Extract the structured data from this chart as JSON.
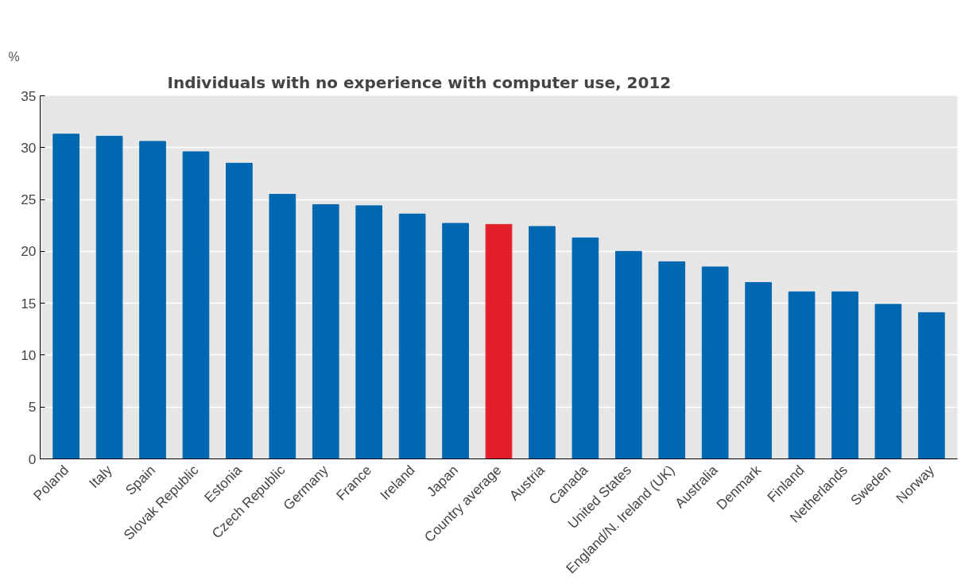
{
  "chart_data": {
    "type": "bar",
    "title": "Individuals with no experience with computer use, 2012",
    "ylabel": "%",
    "categories": [
      "Poland",
      "Italy",
      "Spain",
      "Slovak Republic",
      "Estonia",
      "Czech Republic",
      "Germany",
      "France",
      "Ireland",
      "Japan",
      "Country average",
      "Austria",
      "Canada",
      "United States",
      "England/N. Ireland (UK)",
      "Australia",
      "Denmark",
      "Finland",
      "Netherlands",
      "Sweden",
      "Norway"
    ],
    "values": [
      31.3,
      31.1,
      30.6,
      29.6,
      28.5,
      25.5,
      24.5,
      24.4,
      23.6,
      22.7,
      22.6,
      22.4,
      21.3,
      20.0,
      19.0,
      18.5,
      17.0,
      16.1,
      16.1,
      14.9,
      14.1
    ],
    "colors": [
      "#0067b1",
      "#0067b1",
      "#0067b1",
      "#0067b1",
      "#0067b1",
      "#0067b1",
      "#0067b1",
      "#0067b1",
      "#0067b1",
      "#0067b1",
      "#e3202a",
      "#0067b1",
      "#0067b1",
      "#0067b1",
      "#0067b1",
      "#0067b1",
      "#0067b1",
      "#0067b1",
      "#0067b1",
      "#0067b1",
      "#0067b1"
    ],
    "ylim": [
      0,
      35
    ],
    "yticks": [
      0,
      5,
      10,
      15,
      20,
      25,
      30,
      35
    ],
    "grid": "y"
  }
}
